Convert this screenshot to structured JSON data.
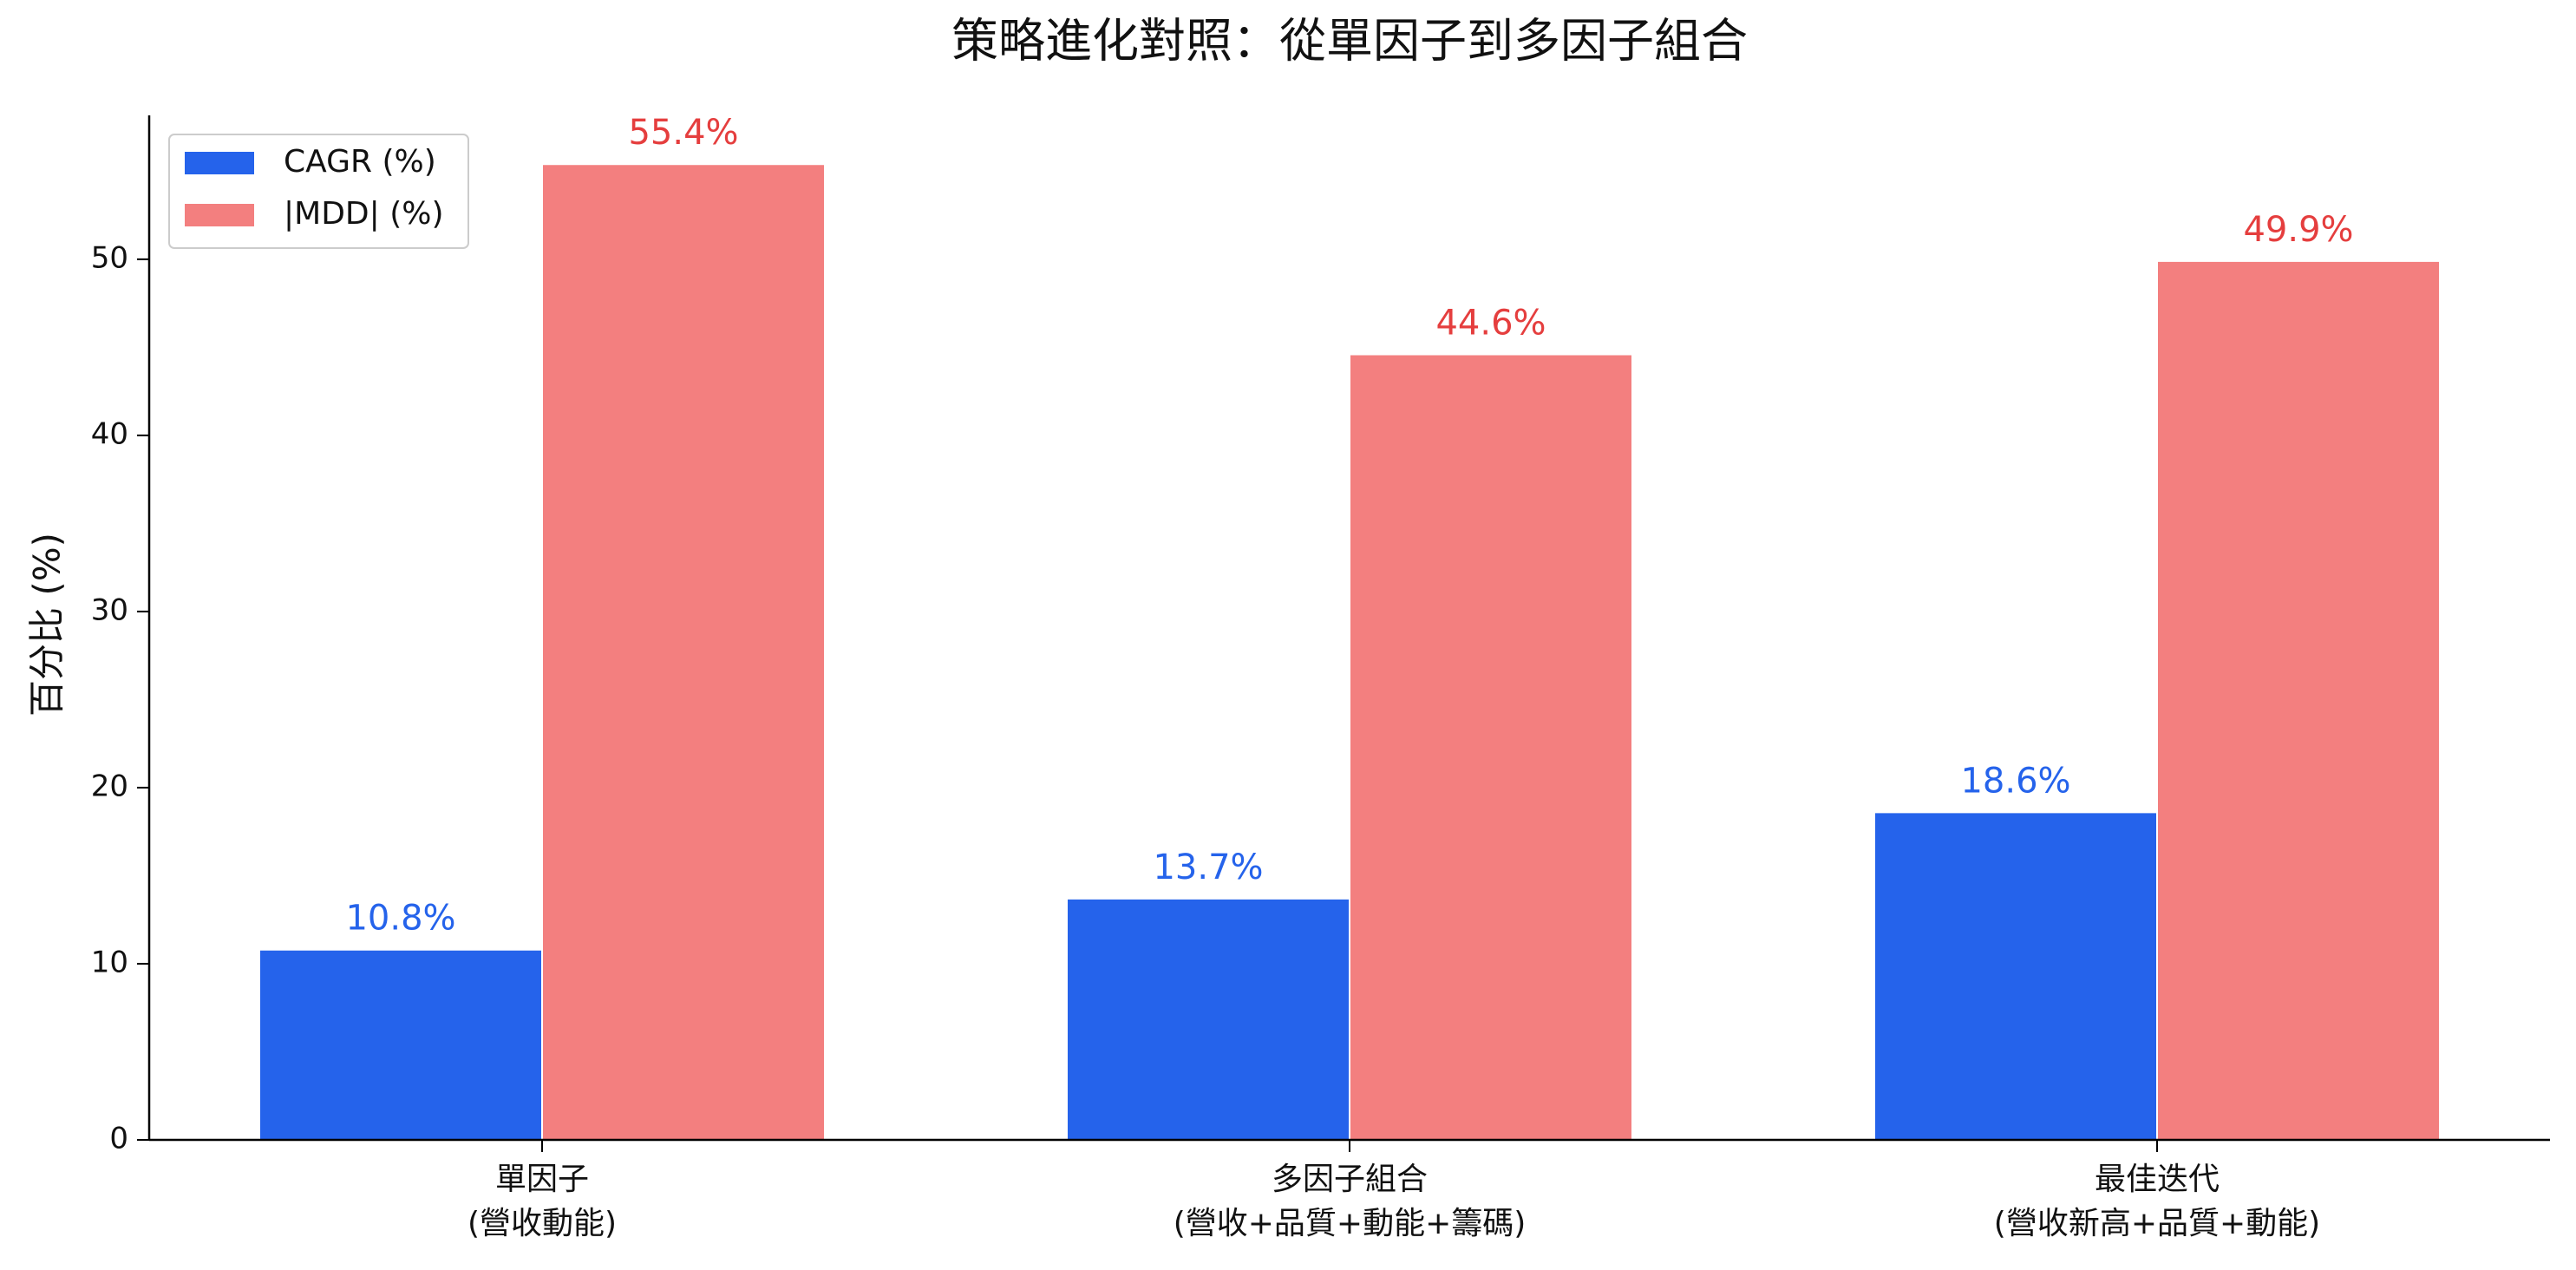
{
  "chart_data": {
    "type": "bar",
    "title": "策略進化對照：從單因子到多因子組合",
    "y_label": "百分比 (%)",
    "categories": [
      "單因子\n(營收動能)",
      "多因子組合\n(營收+品質+動能+籌碼)",
      "最佳迭代\n(營收新高+品質+動能)"
    ],
    "series": [
      {
        "name": "CAGR (%)",
        "color": "#2563eb",
        "label_color": "#2563eb",
        "values": [
          10.8,
          13.7,
          18.6
        ],
        "value_labels": [
          "10.8%",
          "13.7%",
          "18.6%"
        ]
      },
      {
        "name": "|MDD| (%)",
        "color": "#f37f7f",
        "label_color": "#e53e3e",
        "values": [
          55.4,
          44.6,
          49.9
        ],
        "value_labels": [
          "55.4%",
          "44.6%",
          "49.9%"
        ]
      }
    ],
    "ylim": [
      0,
      58.17
    ],
    "yticks": [
      0,
      10,
      20,
      30,
      40,
      50
    ],
    "legend": "upper-left"
  }
}
